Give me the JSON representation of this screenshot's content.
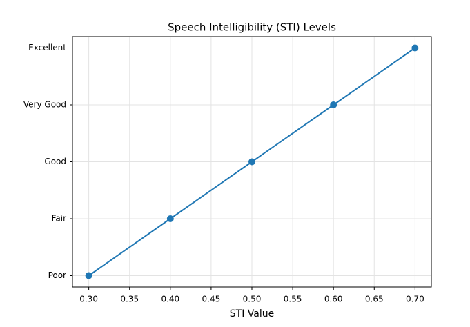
{
  "chart_data": {
    "type": "line",
    "title": "Speech Intelligibility (STI) Levels",
    "xlabel": "STI Value",
    "x": [
      0.3,
      0.4,
      0.5,
      0.6,
      0.7
    ],
    "y_categories": [
      "Poor",
      "Fair",
      "Good",
      "Very Good",
      "Excellent"
    ],
    "series": [
      {
        "color": "#1f77b4",
        "values": [
          "Poor",
          "Fair",
          "Good",
          "Very Good",
          "Excellent"
        ]
      }
    ],
    "xlim": [
      0.28,
      0.72
    ],
    "ylim": [
      -0.2,
      4.2
    ],
    "xticks": [
      {
        "value": 0.3,
        "label": "0.30"
      },
      {
        "value": 0.35,
        "label": "0.35"
      },
      {
        "value": 0.4,
        "label": "0.40"
      },
      {
        "value": 0.45,
        "label": "0.45"
      },
      {
        "value": 0.5,
        "label": "0.50"
      },
      {
        "value": 0.55,
        "label": "0.55"
      },
      {
        "value": 0.6,
        "label": "0.60"
      },
      {
        "value": 0.65,
        "label": "0.65"
      },
      {
        "value": 0.7,
        "label": "0.70"
      }
    ],
    "grid": true
  }
}
